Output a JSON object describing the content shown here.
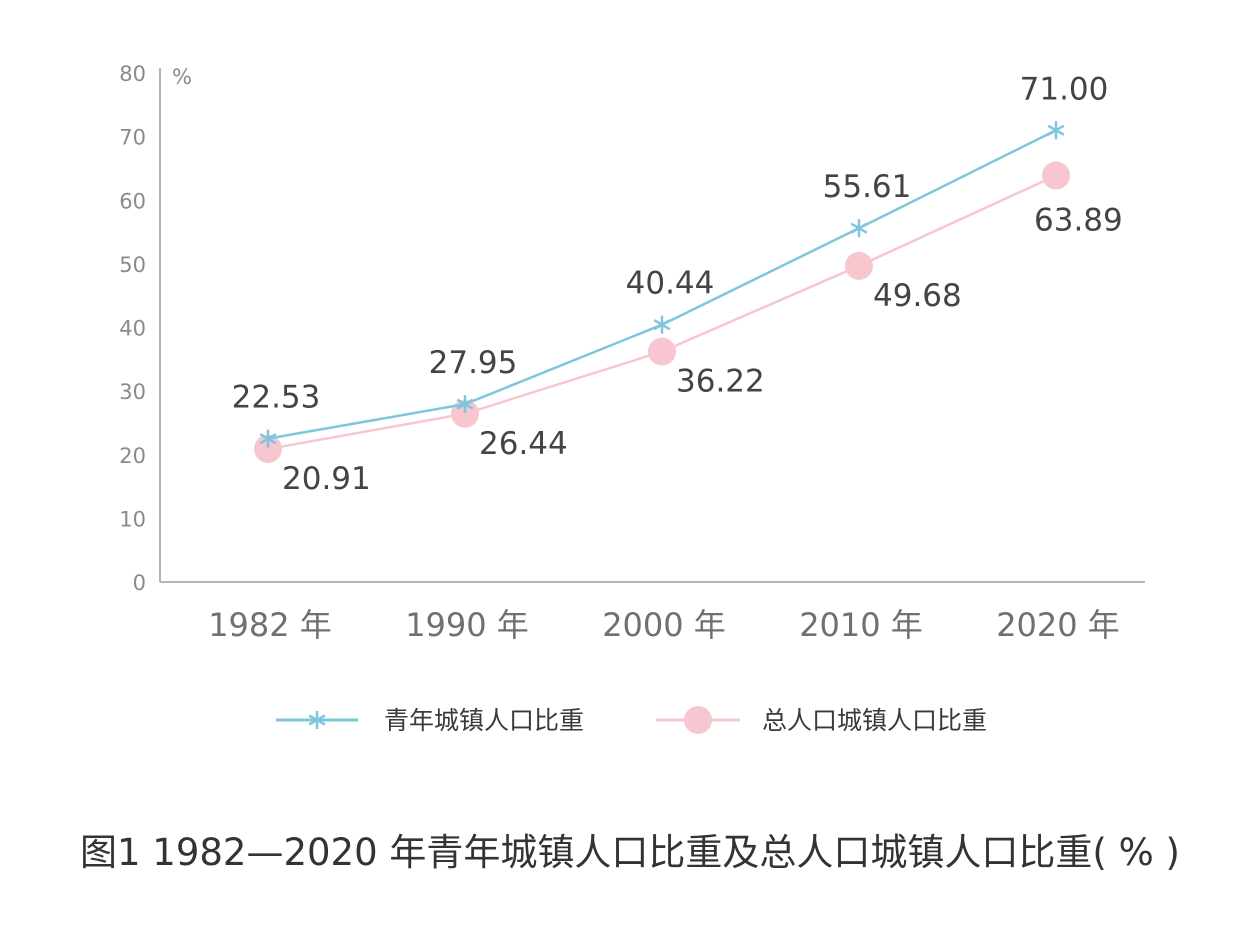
{
  "caption": "图1 1982—2020 年青年城镇人口比重及总人口城镇人口比重( % )",
  "chart_data": {
    "type": "line",
    "unit_label": "%",
    "categories": [
      "1982 年",
      "1990 年",
      "2000 年",
      "2010 年",
      "2020 年"
    ],
    "ylim": [
      0,
      80
    ],
    "yticks": [
      "0",
      "10",
      "20",
      "30",
      "40",
      "50",
      "60",
      "70",
      "80"
    ],
    "grid": false,
    "legend_position": "bottom",
    "series": [
      {
        "name": "青年城镇人口比重",
        "values": [
          22.53,
          27.95,
          40.44,
          55.61,
          71.0
        ],
        "labels": [
          "22.53",
          "27.95",
          "40.44",
          "55.61",
          "71.00"
        ],
        "color": "#7ec6dd",
        "marker": "asterisk"
      },
      {
        "name": "总人口城镇人口比重",
        "values": [
          20.91,
          26.44,
          36.22,
          49.68,
          63.89
        ],
        "labels": [
          "20.91",
          "26.44",
          "36.22",
          "49.68",
          "63.89"
        ],
        "color": "#f7c6cf",
        "marker": "circle"
      }
    ]
  }
}
